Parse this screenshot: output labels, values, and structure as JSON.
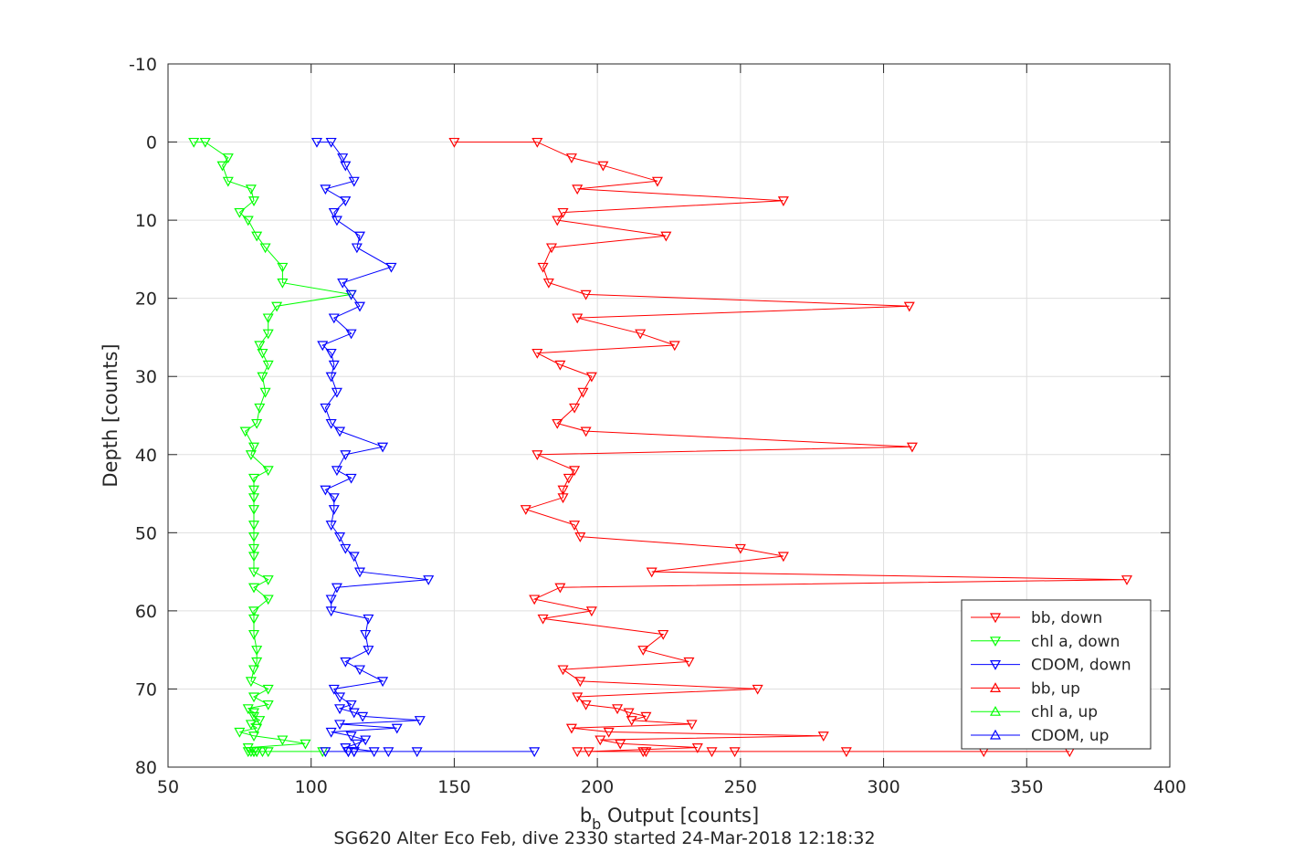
{
  "chart_data": {
    "type": "line",
    "title": "",
    "xlabel": "b",
    "xlabel_subscript": "b",
    "xlabel_rest": " Output [counts]",
    "ylabel": "Depth [counts]",
    "caption": "SG620 Alter Eco Feb, dive 2330 started 24-Mar-2018 12:18:32",
    "xlim": [
      50,
      400
    ],
    "ylim": [
      -10,
      80
    ],
    "y_reversed": true,
    "xticks": [
      50,
      100,
      150,
      200,
      250,
      300,
      350,
      400
    ],
    "yticks": [
      -10,
      0,
      10,
      20,
      30,
      40,
      50,
      60,
      70,
      80
    ],
    "grid": true,
    "legend_position": "bottom-right",
    "series": [
      {
        "name": "bb, down",
        "color": "#ff0000",
        "marker": "triangle-down",
        "x": [
          150,
          179,
          191,
          202,
          221,
          193,
          265,
          188,
          186,
          224,
          184,
          181,
          183,
          196,
          309,
          193,
          215,
          227,
          179,
          187,
          198,
          195,
          192,
          186,
          196,
          310,
          179,
          192,
          190,
          188,
          188,
          175,
          192,
          194,
          250,
          265,
          219,
          385,
          187,
          178,
          198,
          181,
          223,
          216,
          232,
          188,
          194,
          256,
          193,
          196,
          207,
          211,
          217,
          212,
          233,
          191,
          204,
          279,
          201,
          208,
          235,
          197,
          217,
          248,
          287,
          193,
          216,
          240,
          335,
          365
        ],
        "y": [
          0,
          0,
          2,
          3,
          5,
          6,
          7.5,
          9,
          10,
          12,
          13.5,
          16,
          18,
          19.5,
          21,
          22.5,
          24.5,
          26,
          27,
          28.5,
          30,
          32,
          34,
          36,
          37,
          39,
          40,
          42,
          43,
          44.5,
          45.5,
          47,
          49,
          50.5,
          52,
          53,
          55,
          56,
          57,
          58.5,
          60,
          61,
          63,
          65,
          66.5,
          67.5,
          69,
          70,
          71,
          72,
          72.5,
          73,
          73.5,
          74,
          74.5,
          75,
          75.5,
          76,
          76.5,
          77,
          77.5,
          78,
          78,
          78,
          78,
          78,
          78,
          78,
          78,
          78
        ]
      },
      {
        "name": "chl a, down",
        "color": "#00ff00",
        "marker": "triangle-down",
        "x": [
          59,
          63,
          71,
          69,
          71,
          79,
          80,
          75,
          78,
          81,
          84,
          90,
          90,
          114,
          88,
          85,
          85,
          82,
          83,
          85,
          83,
          84,
          82,
          81,
          77,
          80,
          79,
          85,
          80,
          80,
          80,
          80,
          80,
          80,
          80,
          80,
          80,
          85,
          80,
          85,
          80,
          80,
          80,
          81,
          81,
          80,
          79,
          85,
          80,
          85,
          78,
          80,
          80,
          82,
          79,
          81,
          75,
          80,
          90,
          98,
          78,
          80,
          79,
          85,
          81,
          78,
          80,
          83,
          104,
          81
        ],
        "y": [
          0,
          0,
          2,
          3,
          5,
          6,
          7.5,
          9,
          10,
          12,
          13.5,
          16,
          18,
          19.5,
          21,
          22.5,
          24.5,
          26,
          27,
          28.5,
          30,
          32,
          34,
          36,
          37,
          39,
          40,
          42,
          43,
          44.5,
          45.5,
          47,
          49,
          50.5,
          52,
          53,
          55,
          56,
          57,
          58.5,
          60,
          61,
          63,
          65,
          66.5,
          67.5,
          69,
          70,
          71,
          72,
          72.5,
          73,
          73.5,
          74,
          74.5,
          75,
          75.5,
          76,
          76.5,
          77,
          77.5,
          78,
          78,
          78,
          78,
          78,
          78,
          78,
          78,
          78
        ]
      },
      {
        "name": "CDOM, down",
        "color": "#0000ff",
        "marker": "triangle-down",
        "x": [
          102,
          107,
          111,
          112,
          115,
          105,
          112,
          108,
          109,
          117,
          116,
          128,
          111,
          114,
          117,
          108,
          114,
          104,
          107,
          108,
          107,
          109,
          105,
          107,
          110,
          125,
          112,
          109,
          114,
          105,
          108,
          108,
          107,
          110,
          112,
          115,
          117,
          141,
          109,
          107,
          107,
          120,
          119,
          120,
          112,
          117,
          125,
          108,
          110,
          114,
          110,
          115,
          118,
          138,
          110,
          130,
          107,
          114,
          119,
          116,
          112,
          122,
          113,
          113,
          127,
          137,
          178,
          115,
          105,
          115
        ],
        "y": [
          0,
          0,
          2,
          3,
          5,
          6,
          7.5,
          9,
          10,
          12,
          13.5,
          16,
          18,
          19.5,
          21,
          22.5,
          24.5,
          26,
          27,
          28.5,
          30,
          32,
          34,
          36,
          37,
          39,
          40,
          42,
          43,
          44.5,
          45.5,
          47,
          49,
          50.5,
          52,
          53,
          55,
          56,
          57,
          58.5,
          60,
          61,
          63,
          65,
          66.5,
          67.5,
          69,
          70,
          71,
          72,
          72.5,
          73,
          73.5,
          74,
          74.5,
          75,
          75.5,
          76,
          76.5,
          77,
          77.5,
          78,
          78,
          78,
          78,
          78,
          78,
          78,
          78,
          78
        ]
      }
    ]
  }
}
